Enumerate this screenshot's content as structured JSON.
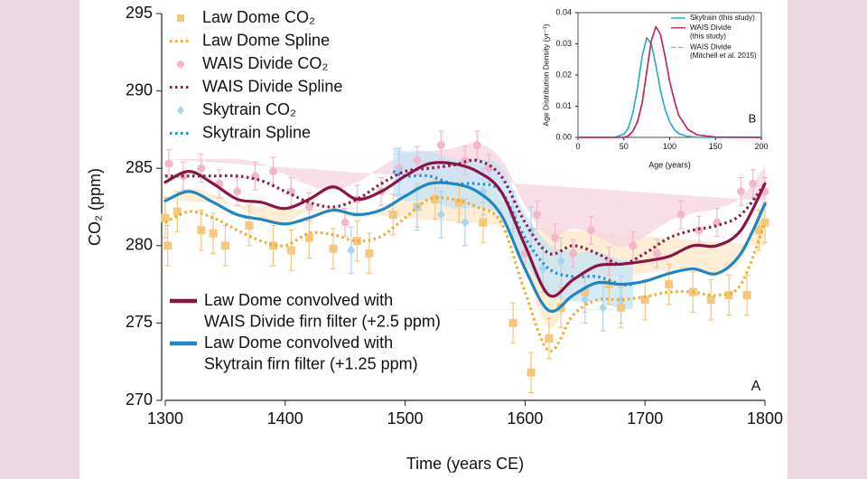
{
  "chart_data": [
    {
      "type": "line",
      "xlabel": "Time (years CE)",
      "ylabel": "CO₂ (ppm)",
      "panel_label": "A",
      "xlim": [
        1300,
        1800
      ],
      "xticks": [
        1300,
        1400,
        1500,
        1600,
        1700,
        1800
      ],
      "ylim": [
        270,
        295
      ],
      "yticks": [
        270,
        275,
        280,
        285,
        290,
        295
      ],
      "series": [
        {
          "name": "Law Dome CO₂",
          "style": "points",
          "marker": "square",
          "color": "#f5c77e",
          "error": 1.3,
          "legend": "upper left",
          "x": [
            1300,
            1302,
            1310,
            1330,
            1340,
            1350,
            1370,
            1390,
            1405,
            1420,
            1440,
            1460,
            1470,
            1490,
            1510,
            1525,
            1545,
            1565,
            1590,
            1605,
            1620,
            1630,
            1650,
            1670,
            1680,
            1700,
            1720,
            1740,
            1755,
            1770,
            1785,
            1795,
            1800
          ],
          "values": [
            281.8,
            280,
            282.2,
            281,
            280.8,
            280,
            281.3,
            280,
            279.7,
            280.5,
            279.8,
            280.3,
            279.5,
            282,
            282.5,
            283,
            282.8,
            281.5,
            275,
            271.8,
            274,
            276,
            277,
            277.5,
            276,
            276.5,
            277.5,
            277,
            276.5,
            276.8,
            276.8,
            281,
            281.5
          ]
        },
        {
          "name": "Law Dome Spline",
          "style": "dotted",
          "color": "#f0aa2e",
          "band_color": "#fbe7c6",
          "uncertainty": 1.5,
          "legend": "upper left",
          "x": [
            1300,
            1320,
            1340,
            1360,
            1380,
            1400,
            1420,
            1440,
            1460,
            1480,
            1500,
            1520,
            1540,
            1560,
            1580,
            1600,
            1620,
            1640,
            1660,
            1680,
            1700,
            1720,
            1740,
            1760,
            1780,
            1800
          ],
          "values": [
            281.5,
            282.2,
            281.8,
            281,
            280.3,
            280,
            280.8,
            280.7,
            280.3,
            280.6,
            281.8,
            283,
            283,
            282.5,
            281.5,
            277,
            273.2,
            275.5,
            276.5,
            276.5,
            276.7,
            277,
            277,
            276.8,
            277.5,
            281.5
          ]
        },
        {
          "name": "WAIS Divide CO₂",
          "style": "points",
          "marker": "circle",
          "color": "#f2b8ca",
          "error": 0.9,
          "legend": "upper left",
          "x": [
            1303,
            1315,
            1330,
            1345,
            1360,
            1375,
            1390,
            1405,
            1420,
            1450,
            1460,
            1480,
            1495,
            1510,
            1530,
            1550,
            1560,
            1570,
            1590,
            1600,
            1610,
            1625,
            1640,
            1655,
            1670,
            1690,
            1710,
            1730,
            1745,
            1760,
            1780,
            1790,
            1800
          ],
          "values": [
            285.3,
            284.5,
            285,
            284,
            283.5,
            284.5,
            284.8,
            283.5,
            282.5,
            281.5,
            283,
            283.5,
            285,
            285.5,
            286.5,
            285.5,
            286.5,
            285,
            282,
            279.5,
            282,
            280.5,
            279.5,
            281,
            279,
            280,
            279.5,
            282,
            281,
            281.5,
            283.5,
            284,
            283.5
          ]
        },
        {
          "name": "WAIS Divide Spline",
          "style": "dotted",
          "color": "#8c1a4b",
          "band_color": "#f5d3df",
          "uncertainty": 1.1,
          "legend": "upper left",
          "x": [
            1300,
            1320,
            1340,
            1360,
            1380,
            1400,
            1420,
            1440,
            1460,
            1480,
            1500,
            1520,
            1540,
            1560,
            1580,
            1600,
            1620,
            1640,
            1660,
            1680,
            1700,
            1720,
            1740,
            1760,
            1780,
            1800
          ],
          "values": [
            284.5,
            284.5,
            284.5,
            284.5,
            284.2,
            283.5,
            282.8,
            282.5,
            283,
            284,
            284.8,
            285,
            285.2,
            285.5,
            284.5,
            281.5,
            279.5,
            280,
            279.5,
            278.8,
            279.5,
            280.5,
            281,
            281.3,
            282,
            284
          ]
        },
        {
          "name": "Skytrain CO₂",
          "style": "points",
          "marker": "diamond",
          "color": "#a9d6ee",
          "error": 1.5,
          "legend": "upper left",
          "x": [
            1455,
            1495,
            1510,
            1530,
            1550,
            1565,
            1590,
            1605,
            1615,
            1630,
            1650,
            1665,
            1680
          ],
          "values": [
            279.7,
            284.8,
            282.5,
            282,
            281.5,
            283.5,
            282,
            281,
            278.5,
            279,
            276.5,
            276,
            276.5
          ]
        },
        {
          "name": "Skytrain Spline",
          "style": "dotted",
          "color": "#2b8ccc",
          "band_color": "#c6e3f5",
          "uncertainty": 1.6,
          "legend": "upper left",
          "x": [
            1490,
            1500,
            1520,
            1540,
            1560,
            1580,
            1600,
            1620,
            1640,
            1660,
            1680,
            1690
          ],
          "values": [
            284.8,
            284.5,
            284.5,
            284,
            284,
            283.5,
            280.5,
            278.5,
            278,
            278,
            277.5,
            277.5
          ]
        },
        {
          "name": [
            "Law Dome convolved with",
            "WAIS Divide firn filter (+2.5 ppm)"
          ],
          "style": "solid",
          "color": "#8c1444",
          "legend": "lower left",
          "x": [
            1300,
            1320,
            1340,
            1360,
            1380,
            1400,
            1420,
            1440,
            1460,
            1480,
            1500,
            1520,
            1540,
            1560,
            1580,
            1600,
            1620,
            1640,
            1660,
            1680,
            1700,
            1720,
            1740,
            1760,
            1780,
            1800
          ],
          "values": [
            284.1,
            284.8,
            284,
            283,
            282.8,
            282.4,
            283,
            283.8,
            283,
            283.5,
            284.5,
            285.3,
            285.3,
            284.8,
            283.5,
            280,
            276.8,
            277.8,
            278.7,
            278.8,
            279,
            279.3,
            280,
            280,
            281,
            284
          ]
        },
        {
          "name": [
            "Law Dome convolved with",
            "Skytrain firn filter (+1.25 ppm)"
          ],
          "style": "solid",
          "color": "#1f86c4",
          "legend": "lower left",
          "x": [
            1300,
            1320,
            1340,
            1360,
            1380,
            1400,
            1420,
            1440,
            1460,
            1480,
            1500,
            1520,
            1540,
            1560,
            1580,
            1600,
            1620,
            1640,
            1660,
            1680,
            1700,
            1720,
            1740,
            1760,
            1780,
            1800
          ],
          "values": [
            282.9,
            283.5,
            282.8,
            282,
            281.7,
            281.4,
            281.8,
            282.3,
            282,
            282.3,
            283.2,
            284,
            284,
            283.5,
            282,
            278.5,
            275.8,
            276.8,
            277.6,
            277.5,
            277.7,
            278.2,
            278.5,
            278.2,
            279.5,
            282.7
          ]
        }
      ]
    },
    {
      "type": "line",
      "xlabel": "Age (years)",
      "ylabel": "Age Distribution Density (yr⁻¹)",
      "panel_label": "B",
      "xlim": [
        0,
        200
      ],
      "xticks": [
        0,
        50,
        100,
        150,
        200
      ],
      "ylim": [
        0,
        0.04
      ],
      "yticks": [
        {
          "value": 0,
          "label": "0.00"
        },
        0.01,
        0.02,
        0.03,
        0.04
      ],
      "series": [
        {
          "name": "Skytrain (this study)",
          "style": "solid",
          "color": "#29a3dc",
          "legend": "upper right",
          "x": [
            0,
            40,
            50,
            55,
            60,
            65,
            70,
            75,
            80,
            85,
            90,
            95,
            100,
            105,
            110,
            120,
            130,
            150,
            200
          ],
          "values": [
            0,
            0,
            0.001,
            0.003,
            0.008,
            0.016,
            0.026,
            0.032,
            0.03,
            0.023,
            0.015,
            0.009,
            0.005,
            0.0025,
            0.0012,
            0.0003,
            0,
            0,
            0
          ]
        },
        {
          "name": [
            "WAIS Divide",
            "(this study)"
          ],
          "style": "solid",
          "color": "#c0265a",
          "legend": "upper right",
          "x": [
            0,
            40,
            50,
            55,
            60,
            65,
            70,
            75,
            80,
            85,
            90,
            95,
            100,
            105,
            110,
            120,
            130,
            150,
            200
          ],
          "values": [
            0,
            0,
            0,
            0.0005,
            0.002,
            0.005,
            0.011,
            0.021,
            0.031,
            0.0355,
            0.033,
            0.026,
            0.018,
            0.012,
            0.007,
            0.0025,
            0.0008,
            0.0001,
            0
          ]
        },
        {
          "name": [
            "WAIS Divide",
            "(Mitchell et al. 2015)"
          ],
          "style": "dashed",
          "color": "#a8a8a8",
          "legend": "upper right",
          "x": [
            0,
            40,
            50,
            55,
            60,
            65,
            70,
            75,
            80,
            85,
            90,
            95,
            100,
            105,
            110,
            120,
            130,
            150,
            200
          ],
          "values": [
            0,
            0,
            0,
            0.0006,
            0.0022,
            0.0055,
            0.0115,
            0.0215,
            0.0312,
            0.0355,
            0.0328,
            0.0258,
            0.0178,
            0.0118,
            0.0069,
            0.0025,
            0.0008,
            0.0001,
            0
          ]
        }
      ]
    }
  ]
}
